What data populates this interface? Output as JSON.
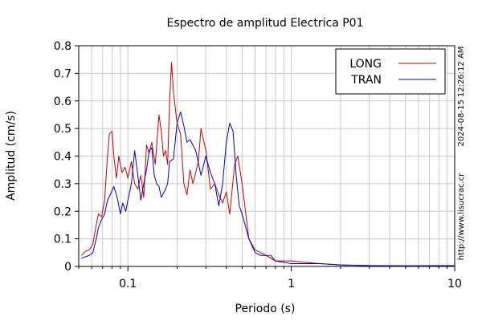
{
  "chart_data": {
    "type": "line",
    "title": "Espectro de amplitud Electrica P01",
    "xlabel": "Periodo (s)",
    "ylabel": "Amplitud (cm/s)",
    "x_scale": "log",
    "xlim": [
      0.05,
      10
    ],
    "ylim": [
      0,
      0.8
    ],
    "x_ticks": [
      {
        "value": 0.1,
        "label": "0.1"
      },
      {
        "value": 1,
        "label": "1"
      },
      {
        "value": 10,
        "label": "10"
      }
    ],
    "y_ticks": [
      {
        "value": 0,
        "label": "0"
      },
      {
        "value": 0.1,
        "label": "0.1"
      },
      {
        "value": 0.2,
        "label": "0.2"
      },
      {
        "value": 0.3,
        "label": "0.3"
      },
      {
        "value": 0.4,
        "label": "0.4"
      },
      {
        "value": 0.5,
        "label": "0.5"
      },
      {
        "value": 0.6,
        "label": "0.6"
      },
      {
        "value": 0.7,
        "label": "0.7"
      },
      {
        "value": 0.8,
        "label": "0.8"
      }
    ],
    "grid": true,
    "legend_position": "top-right",
    "series": [
      {
        "name": "LONG",
        "color": "#cc0000",
        "points": [
          [
            0.052,
            0.04
          ],
          [
            0.055,
            0.055
          ],
          [
            0.058,
            0.06
          ],
          [
            0.061,
            0.08
          ],
          [
            0.064,
            0.15
          ],
          [
            0.066,
            0.19
          ],
          [
            0.069,
            0.18
          ],
          [
            0.072,
            0.24
          ],
          [
            0.075,
            0.4
          ],
          [
            0.077,
            0.48
          ],
          [
            0.08,
            0.49
          ],
          [
            0.082,
            0.4
          ],
          [
            0.085,
            0.32
          ],
          [
            0.088,
            0.4
          ],
          [
            0.092,
            0.34
          ],
          [
            0.096,
            0.36
          ],
          [
            0.1,
            0.32
          ],
          [
            0.105,
            0.38
          ],
          [
            0.11,
            0.3
          ],
          [
            0.115,
            0.28
          ],
          [
            0.12,
            0.33
          ],
          [
            0.125,
            0.25
          ],
          [
            0.13,
            0.44
          ],
          [
            0.135,
            0.41
          ],
          [
            0.14,
            0.45
          ],
          [
            0.147,
            0.37
          ],
          [
            0.155,
            0.55
          ],
          [
            0.16,
            0.49
          ],
          [
            0.165,
            0.4
          ],
          [
            0.17,
            0.42
          ],
          [
            0.175,
            0.37
          ],
          [
            0.18,
            0.6
          ],
          [
            0.185,
            0.74
          ],
          [
            0.19,
            0.63
          ],
          [
            0.2,
            0.52
          ],
          [
            0.21,
            0.48
          ],
          [
            0.22,
            0.3
          ],
          [
            0.23,
            0.26
          ],
          [
            0.24,
            0.35
          ],
          [
            0.25,
            0.3
          ],
          [
            0.27,
            0.38
          ],
          [
            0.28,
            0.5
          ],
          [
            0.3,
            0.42
          ],
          [
            0.32,
            0.28
          ],
          [
            0.34,
            0.3
          ],
          [
            0.36,
            0.26
          ],
          [
            0.38,
            0.23
          ],
          [
            0.4,
            0.27
          ],
          [
            0.42,
            0.19
          ],
          [
            0.45,
            0.37
          ],
          [
            0.47,
            0.4
          ],
          [
            0.5,
            0.3
          ],
          [
            0.55,
            0.1
          ],
          [
            0.6,
            0.06
          ],
          [
            0.65,
            0.05
          ],
          [
            0.7,
            0.04
          ],
          [
            0.75,
            0.04
          ],
          [
            0.8,
            0.02
          ],
          [
            0.9,
            0.02
          ],
          [
            1.0,
            0.02
          ],
          [
            1.2,
            0.015
          ],
          [
            1.5,
            0.01
          ],
          [
            2.0,
            0.006
          ],
          [
            3.0,
            0.003
          ],
          [
            5.0,
            0.002
          ],
          [
            8.0,
            0.003
          ],
          [
            10.0,
            0.003
          ]
        ]
      },
      {
        "name": "TRAN",
        "color": "#0000cc",
        "points": [
          [
            0.052,
            0.03
          ],
          [
            0.055,
            0.035
          ],
          [
            0.058,
            0.04
          ],
          [
            0.061,
            0.05
          ],
          [
            0.064,
            0.1
          ],
          [
            0.066,
            0.14
          ],
          [
            0.069,
            0.17
          ],
          [
            0.072,
            0.19
          ],
          [
            0.075,
            0.24
          ],
          [
            0.078,
            0.26
          ],
          [
            0.082,
            0.29
          ],
          [
            0.086,
            0.25
          ],
          [
            0.09,
            0.19
          ],
          [
            0.093,
            0.23
          ],
          [
            0.097,
            0.2
          ],
          [
            0.1,
            0.24
          ],
          [
            0.105,
            0.3
          ],
          [
            0.11,
            0.42
          ],
          [
            0.115,
            0.33
          ],
          [
            0.12,
            0.24
          ],
          [
            0.125,
            0.3
          ],
          [
            0.13,
            0.35
          ],
          [
            0.135,
            0.42
          ],
          [
            0.14,
            0.43
          ],
          [
            0.145,
            0.33
          ],
          [
            0.15,
            0.3
          ],
          [
            0.155,
            0.29
          ],
          [
            0.16,
            0.25
          ],
          [
            0.17,
            0.28
          ],
          [
            0.175,
            0.3
          ],
          [
            0.18,
            0.38
          ],
          [
            0.19,
            0.39
          ],
          [
            0.2,
            0.52
          ],
          [
            0.21,
            0.56
          ],
          [
            0.22,
            0.51
          ],
          [
            0.23,
            0.45
          ],
          [
            0.24,
            0.46
          ],
          [
            0.26,
            0.42
          ],
          [
            0.28,
            0.33
          ],
          [
            0.3,
            0.4
          ],
          [
            0.32,
            0.34
          ],
          [
            0.34,
            0.3
          ],
          [
            0.36,
            0.22
          ],
          [
            0.38,
            0.3
          ],
          [
            0.4,
            0.45
          ],
          [
            0.42,
            0.52
          ],
          [
            0.44,
            0.49
          ],
          [
            0.46,
            0.33
          ],
          [
            0.48,
            0.22
          ],
          [
            0.5,
            0.19
          ],
          [
            0.55,
            0.1
          ],
          [
            0.6,
            0.05
          ],
          [
            0.65,
            0.04
          ],
          [
            0.7,
            0.04
          ],
          [
            0.75,
            0.03
          ],
          [
            0.8,
            0.02
          ],
          [
            0.9,
            0.015
          ],
          [
            1.0,
            0.01
          ],
          [
            1.2,
            0.01
          ],
          [
            1.5,
            0.01
          ],
          [
            2.0,
            0.005
          ],
          [
            3.0,
            0.003
          ],
          [
            5.0,
            0.002
          ],
          [
            8.0,
            0.002
          ],
          [
            10.0,
            0.003
          ]
        ]
      }
    ],
    "side_labels": {
      "timestamp": "2024-08-15 12:26:12 AM",
      "website": "http://www.lisucrac.cr"
    }
  }
}
